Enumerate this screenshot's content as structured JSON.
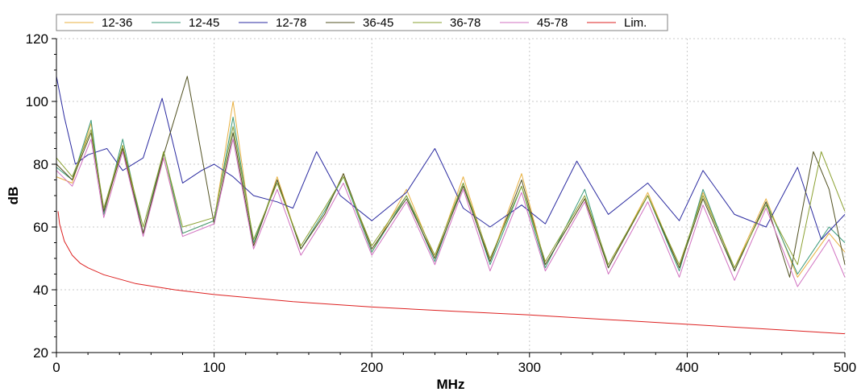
{
  "chart_data": {
    "type": "line",
    "title": "",
    "xlabel": "MHz",
    "ylabel": "dB",
    "xlim": [
      0,
      500
    ],
    "ylim": [
      20,
      120
    ],
    "xticks": [
      0,
      100,
      200,
      300,
      400,
      500
    ],
    "yticks": [
      20,
      40,
      60,
      80,
      100,
      120
    ],
    "grid": true,
    "legend_position": "top",
    "series": [
      {
        "name": "12-36",
        "color": "#e8b040",
        "values": [
          [
            0,
            76
          ],
          [
            10,
            74
          ],
          [
            22,
            93
          ],
          [
            30,
            64
          ],
          [
            42,
            86
          ],
          [
            55,
            58
          ],
          [
            68,
            82
          ],
          [
            80,
            58
          ],
          [
            100,
            62
          ],
          [
            112,
            100
          ],
          [
            125,
            54
          ],
          [
            140,
            76
          ],
          [
            155,
            53
          ],
          [
            170,
            64
          ],
          [
            182,
            77
          ],
          [
            200,
            52
          ],
          [
            222,
            72
          ],
          [
            240,
            50
          ],
          [
            258,
            76
          ],
          [
            275,
            49
          ],
          [
            295,
            77
          ],
          [
            310,
            48
          ],
          [
            335,
            69
          ],
          [
            350,
            47
          ],
          [
            375,
            71
          ],
          [
            395,
            47
          ],
          [
            410,
            71
          ],
          [
            430,
            47
          ],
          [
            450,
            69
          ],
          [
            470,
            44
          ],
          [
            490,
            58
          ],
          [
            500,
            52
          ]
        ]
      },
      {
        "name": "12-45",
        "color": "#3a9a7a",
        "values": [
          [
            0,
            79
          ],
          [
            10,
            75
          ],
          [
            22,
            94
          ],
          [
            30,
            64
          ],
          [
            42,
            88
          ],
          [
            55,
            58
          ],
          [
            68,
            84
          ],
          [
            80,
            58
          ],
          [
            100,
            62
          ],
          [
            112,
            95
          ],
          [
            125,
            55
          ],
          [
            140,
            75
          ],
          [
            155,
            53
          ],
          [
            170,
            65
          ],
          [
            182,
            76
          ],
          [
            200,
            52
          ],
          [
            222,
            70
          ],
          [
            240,
            49
          ],
          [
            258,
            74
          ],
          [
            275,
            48
          ],
          [
            295,
            73
          ],
          [
            310,
            47
          ],
          [
            335,
            72
          ],
          [
            350,
            47
          ],
          [
            375,
            70
          ],
          [
            395,
            46
          ],
          [
            410,
            72
          ],
          [
            430,
            46
          ],
          [
            450,
            68
          ],
          [
            470,
            45
          ],
          [
            490,
            60
          ],
          [
            500,
            55
          ]
        ]
      },
      {
        "name": "12-78",
        "color": "#2a2aa0",
        "values": [
          [
            0,
            108
          ],
          [
            5,
            95
          ],
          [
            12,
            80
          ],
          [
            20,
            83
          ],
          [
            32,
            85
          ],
          [
            42,
            78
          ],
          [
            55,
            82
          ],
          [
            67,
            101
          ],
          [
            80,
            74
          ],
          [
            92,
            78
          ],
          [
            100,
            80
          ],
          [
            112,
            76
          ],
          [
            125,
            70
          ],
          [
            140,
            68
          ],
          [
            150,
            66
          ],
          [
            165,
            84
          ],
          [
            180,
            70
          ],
          [
            200,
            62
          ],
          [
            222,
            71
          ],
          [
            240,
            85
          ],
          [
            258,
            66
          ],
          [
            275,
            60
          ],
          [
            295,
            67
          ],
          [
            310,
            61
          ],
          [
            330,
            81
          ],
          [
            350,
            64
          ],
          [
            375,
            74
          ],
          [
            395,
            62
          ],
          [
            410,
            78
          ],
          [
            430,
            64
          ],
          [
            450,
            60
          ],
          [
            470,
            79
          ],
          [
            485,
            56
          ],
          [
            500,
            64
          ]
        ]
      },
      {
        "name": "36-45",
        "color": "#505020",
        "values": [
          [
            0,
            80
          ],
          [
            10,
            75
          ],
          [
            22,
            90
          ],
          [
            30,
            65
          ],
          [
            42,
            85
          ],
          [
            55,
            58
          ],
          [
            68,
            83
          ],
          [
            83,
            108
          ],
          [
            100,
            61
          ],
          [
            112,
            90
          ],
          [
            125,
            54
          ],
          [
            140,
            75
          ],
          [
            155,
            53
          ],
          [
            170,
            64
          ],
          [
            182,
            77
          ],
          [
            200,
            53
          ],
          [
            222,
            69
          ],
          [
            240,
            50
          ],
          [
            258,
            73
          ],
          [
            275,
            49
          ],
          [
            295,
            75
          ],
          [
            310,
            48
          ],
          [
            335,
            69
          ],
          [
            350,
            47
          ],
          [
            375,
            70
          ],
          [
            395,
            47
          ],
          [
            410,
            69
          ],
          [
            430,
            46
          ],
          [
            450,
            68
          ],
          [
            465,
            44
          ],
          [
            480,
            84
          ],
          [
            490,
            72
          ],
          [
            500,
            48
          ]
        ]
      },
      {
        "name": "36-78",
        "color": "#8aa030",
        "values": [
          [
            0,
            82
          ],
          [
            10,
            76
          ],
          [
            22,
            91
          ],
          [
            30,
            66
          ],
          [
            42,
            86
          ],
          [
            55,
            60
          ],
          [
            68,
            84
          ],
          [
            80,
            60
          ],
          [
            100,
            63
          ],
          [
            112,
            92
          ],
          [
            125,
            56
          ],
          [
            140,
            74
          ],
          [
            155,
            54
          ],
          [
            170,
            66
          ],
          [
            182,
            76
          ],
          [
            200,
            54
          ],
          [
            222,
            70
          ],
          [
            240,
            51
          ],
          [
            258,
            74
          ],
          [
            275,
            50
          ],
          [
            295,
            73
          ],
          [
            310,
            49
          ],
          [
            335,
            70
          ],
          [
            350,
            48
          ],
          [
            375,
            70
          ],
          [
            395,
            48
          ],
          [
            410,
            70
          ],
          [
            430,
            47
          ],
          [
            450,
            67
          ],
          [
            470,
            48
          ],
          [
            485,
            84
          ],
          [
            500,
            65
          ]
        ]
      },
      {
        "name": "45-78",
        "color": "#d070c0",
        "values": [
          [
            0,
            78
          ],
          [
            10,
            73
          ],
          [
            22,
            88
          ],
          [
            30,
            63
          ],
          [
            42,
            84
          ],
          [
            55,
            57
          ],
          [
            68,
            82
          ],
          [
            80,
            57
          ],
          [
            100,
            61
          ],
          [
            112,
            88
          ],
          [
            125,
            53
          ],
          [
            140,
            72
          ],
          [
            155,
            51
          ],
          [
            170,
            63
          ],
          [
            182,
            74
          ],
          [
            200,
            51
          ],
          [
            222,
            68
          ],
          [
            240,
            48
          ],
          [
            258,
            72
          ],
          [
            275,
            46
          ],
          [
            295,
            71
          ],
          [
            310,
            46
          ],
          [
            335,
            68
          ],
          [
            350,
            45
          ],
          [
            375,
            68
          ],
          [
            395,
            44
          ],
          [
            410,
            67
          ],
          [
            430,
            43
          ],
          [
            450,
            66
          ],
          [
            470,
            41
          ],
          [
            490,
            56
          ],
          [
            500,
            44
          ]
        ]
      },
      {
        "name": "Lim.",
        "color": "#dd2020",
        "values": [
          [
            1,
            65
          ],
          [
            2,
            61
          ],
          [
            5,
            55.5
          ],
          [
            10,
            51
          ],
          [
            15,
            48.5
          ],
          [
            20,
            47
          ],
          [
            30,
            44.8
          ],
          [
            50,
            42
          ],
          [
            75,
            40
          ],
          [
            100,
            38.5
          ],
          [
            150,
            36.2
          ],
          [
            200,
            34.5
          ],
          [
            250,
            33.2
          ],
          [
            300,
            32
          ],
          [
            350,
            30.5
          ],
          [
            400,
            29
          ],
          [
            450,
            27.5
          ],
          [
            500,
            26
          ]
        ]
      }
    ]
  }
}
